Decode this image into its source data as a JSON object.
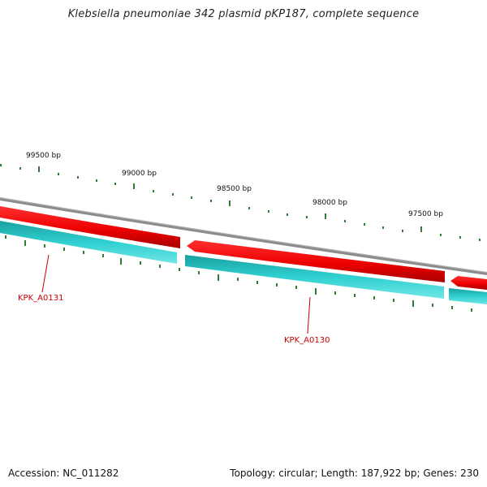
{
  "title": "Klebsiella pneumoniae 342 plasmid pKP187, complete sequence",
  "footer": {
    "accession": "Accession: NC_011282",
    "summary": "Topology: circular; Length: 187,922 bp; Genes: 230"
  },
  "colors": {
    "backbone": "#8c8c8c",
    "forward_cds": "#ff0000",
    "reverse_cds": "#20c8c8",
    "ticks": "#2e7d32",
    "gene_label": "#cc0000"
  },
  "ticks": [
    {
      "label": "99500 bp",
      "pos": 99500
    },
    {
      "label": "99000 bp",
      "pos": 99000
    },
    {
      "label": "98500 bp",
      "pos": 98500
    },
    {
      "label": "98000 bp",
      "pos": 98000
    },
    {
      "label": "97500 bp",
      "pos": 97500
    }
  ],
  "genes": [
    {
      "name": "KPK_A0131"
    },
    {
      "name": "KPK_A0130"
    }
  ]
}
